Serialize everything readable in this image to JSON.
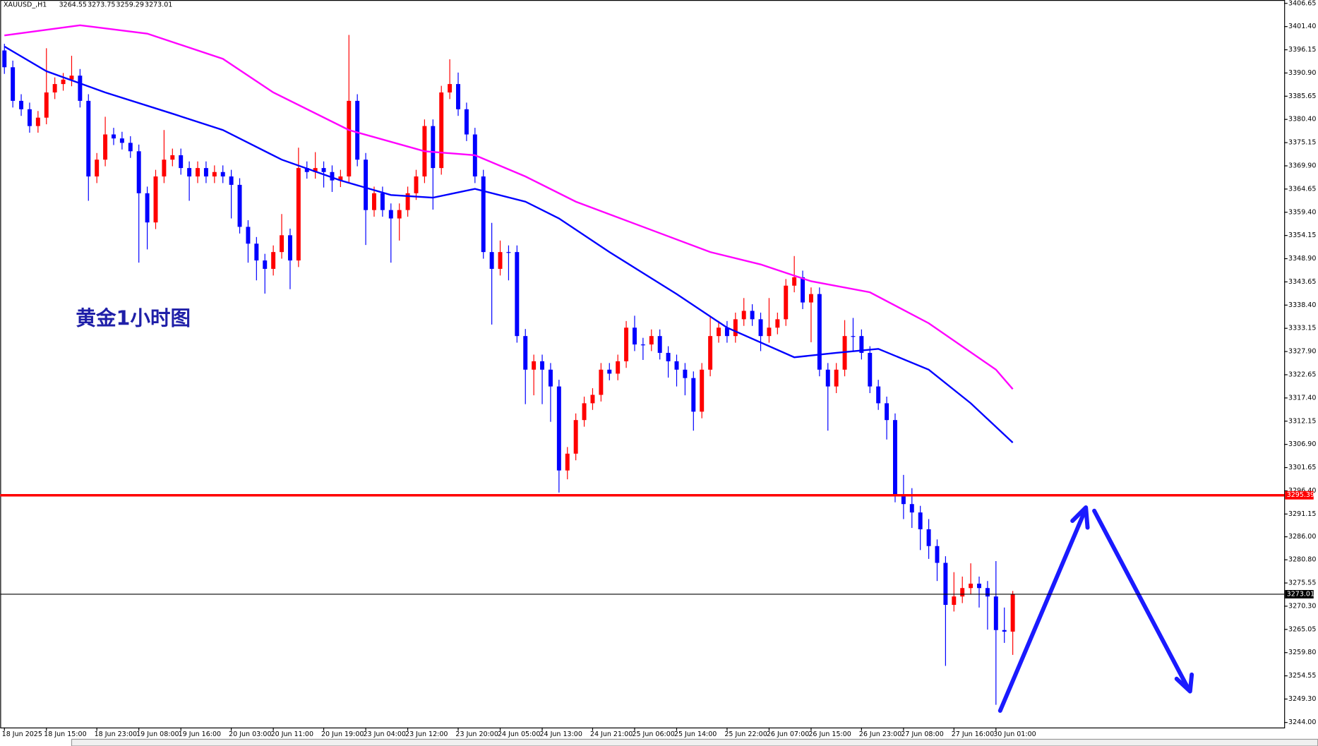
{
  "chart_data": {
    "type": "candlestick",
    "symbol": "XAUUSD_,H1",
    "annotation": "黄金1小时图",
    "up_color": "#ff0000",
    "down_color": "#0000ff",
    "grid": false,
    "ylim": [
      3242.86,
      3407.41
    ],
    "yticks": [
      {
        "value": 3406.65,
        "label": "3406.65"
      },
      {
        "value": 3401.4,
        "label": "3401.40"
      },
      {
        "value": 3396.15,
        "label": "3396.15"
      },
      {
        "value": 3390.9,
        "label": "3390.90"
      },
      {
        "value": 3385.65,
        "label": "3385.65"
      },
      {
        "value": 3380.4,
        "label": "3380.40"
      },
      {
        "value": 3375.15,
        "label": "3375.15"
      },
      {
        "value": 3369.9,
        "label": "3369.90"
      },
      {
        "value": 3364.65,
        "label": "3364.65"
      },
      {
        "value": 3359.4,
        "label": "3359.40"
      },
      {
        "value": 3354.15,
        "label": "3354.15"
      },
      {
        "value": 3348.9,
        "label": "3348.90"
      },
      {
        "value": 3343.65,
        "label": "3343.65"
      },
      {
        "value": 3338.4,
        "label": "3338.40"
      },
      {
        "value": 3333.15,
        "label": "3333.15"
      },
      {
        "value": 3327.9,
        "label": "3327.90"
      },
      {
        "value": 3322.65,
        "label": "3322.65"
      },
      {
        "value": 3317.4,
        "label": "3317.40"
      },
      {
        "value": 3312.15,
        "label": "3312.15"
      },
      {
        "value": 3306.9,
        "label": "3306.90"
      },
      {
        "value": 3301.65,
        "label": "3301.65"
      },
      {
        "value": 3296.4,
        "label": "3296.40"
      },
      {
        "value": 3291.15,
        "label": "3291.15"
      },
      {
        "value": 3286.0,
        "label": "3286.00"
      },
      {
        "value": 3280.8,
        "label": "3280.80"
      },
      {
        "value": 3275.55,
        "label": "3275.55"
      },
      {
        "value": 3270.3,
        "label": "3270.30"
      },
      {
        "value": 3265.05,
        "label": "3265.05"
      },
      {
        "value": 3259.8,
        "label": "3259.80"
      },
      {
        "value": 3254.55,
        "label": "3254.55"
      },
      {
        "value": 3249.3,
        "label": "3249.30"
      },
      {
        "value": 3244.0,
        "label": "3244.00"
      }
    ],
    "levels": [
      {
        "value": 3295.39,
        "color": "#ff0000"
      },
      {
        "value": 3273.01,
        "color": "#000000"
      }
    ],
    "categories": [
      "18 Jun 2025",
      null,
      null,
      null,
      null,
      "18 Jun 15:00",
      null,
      null,
      null,
      null,
      null,
      "18 Jun 23:00",
      null,
      null,
      null,
      null,
      "19 Jun 08:00",
      null,
      null,
      null,
      null,
      "19 Jun 16:00",
      null,
      null,
      null,
      null,
      null,
      "20 Jun 03:00",
      null,
      null,
      null,
      null,
      "20 Jun 11:00",
      null,
      null,
      null,
      null,
      null,
      "20 Jun 19:00",
      null,
      null,
      null,
      null,
      "23 Jun 04:00",
      null,
      null,
      null,
      null,
      "23 Jun 12:00",
      null,
      null,
      null,
      null,
      null,
      "23 Jun 20:00",
      null,
      null,
      null,
      null,
      "24 Jun 05:00",
      null,
      null,
      null,
      null,
      "24 Jun 13:00",
      null,
      null,
      null,
      null,
      null,
      "24 Jun 21:00",
      null,
      null,
      null,
      null,
      "25 Jun 06:00",
      null,
      null,
      null,
      null,
      "25 Jun 14:00",
      null,
      null,
      null,
      null,
      null,
      "25 Jun 22:00",
      null,
      null,
      null,
      null,
      "26 Jun 07:00",
      null,
      null,
      null,
      null,
      "26 Jun 15:00",
      null,
      null,
      null,
      null,
      null,
      "26 Jun 23:00",
      null,
      null,
      null,
      null,
      "27 Jun 08:00",
      null,
      null,
      null,
      null,
      null,
      "27 Jun 16:00",
      null,
      null,
      null,
      null,
      "30 Jun 01:00",
      null,
      null
    ],
    "open": [
      3396.0,
      3392.2,
      3384.6,
      3382.7,
      3378.9,
      3380.8,
      3386.5,
      3388.4,
      3389.4,
      3390.3,
      3384.6,
      3367.5,
      3371.3,
      3377.0,
      3376.1,
      3375.1,
      3373.2,
      3363.7,
      3357.1,
      3367.5,
      3371.3,
      3372.3,
      3369.4,
      3367.5,
      3369.4,
      3367.5,
      3368.5,
      3367.5,
      3365.6,
      3356.1,
      3352.3,
      3348.5,
      3346.6,
      3350.4,
      3354.2,
      3348.5,
      3369.4,
      3368.5,
      3369.4,
      3368.5,
      3366.6,
      3367.5,
      3384.6,
      3371.3,
      3359.9,
      3363.7,
      3359.9,
      3358.0,
      3359.9,
      3363.7,
      3367.5,
      3378.9,
      3369.4,
      3386.5,
      3388.4,
      3382.7,
      3377.0,
      3367.5,
      3350.4,
      3346.6,
      3350.4,
      3350.4,
      3331.4,
      3323.8,
      3325.7,
      3323.8,
      3320.0,
      3301.0,
      3304.8,
      3312.4,
      3316.2,
      3318.1,
      3323.8,
      3322.9,
      3325.7,
      3333.3,
      3329.5,
      3329.5,
      3331.4,
      3327.6,
      3325.7,
      3323.8,
      3321.9,
      3314.3,
      3323.8,
      3331.4,
      3333.3,
      3331.4,
      3335.2,
      3337.1,
      3335.2,
      3331.4,
      3333.3,
      3335.2,
      3342.8,
      3344.7,
      3339.0,
      3340.9,
      3323.8,
      3320.0,
      3323.8,
      3331.4,
      3331.4,
      3327.6,
      3320.0,
      3316.2,
      3312.4,
      3295.3,
      3293.4,
      3291.5,
      3287.7,
      3283.9,
      3280.1,
      3270.6,
      3272.5,
      3274.4,
      3275.4,
      3274.4,
      3272.5,
      3264.9,
      3264.55
    ],
    "high": [
      3397.5,
      3393.7,
      3386.1,
      3384.2,
      3382.3,
      3396.5,
      3389.9,
      3390.9,
      3394.8,
      3391.8,
      3386.1,
      3372.8,
      3381.0,
      3378.5,
      3377.6,
      3376.6,
      3374.7,
      3365.2,
      3369.0,
      3378.0,
      3373.8,
      3373.8,
      3370.9,
      3370.9,
      3370.9,
      3370.0,
      3370.0,
      3369.0,
      3367.1,
      3357.6,
      3353.8,
      3350.0,
      3351.9,
      3359.0,
      3355.7,
      3374.0,
      3370.9,
      3373.0,
      3370.9,
      3370.0,
      3369.0,
      3399.5,
      3386.1,
      3372.8,
      3365.2,
      3365.2,
      3361.4,
      3361.4,
      3365.2,
      3369.0,
      3380.4,
      3380.4,
      3388.0,
      3394.0,
      3391.0,
      3384.2,
      3378.5,
      3369.0,
      3357.0,
      3353.0,
      3351.9,
      3351.9,
      3333.0,
      3327.2,
      3327.2,
      3325.3,
      3321.5,
      3306.3,
      3313.9,
      3317.7,
      3319.6,
      3325.3,
      3325.3,
      3327.2,
      3334.8,
      3336.0,
      3331.0,
      3332.9,
      3332.9,
      3329.1,
      3327.2,
      3325.3,
      3323.4,
      3325.3,
      3336.0,
      3334.8,
      3334.8,
      3336.7,
      3340.0,
      3338.6,
      3336.7,
      3340.0,
      3336.7,
      3344.3,
      3349.5,
      3346.2,
      3342.4,
      3342.4,
      3325.3,
      3325.3,
      3335.0,
      3335.5,
      3332.9,
      3329.1,
      3321.5,
      3317.7,
      3313.9,
      3300.0,
      3297.0,
      3293.0,
      3290.0,
      3285.4,
      3281.6,
      3278.0,
      3277.0,
      3280.0,
      3277.0,
      3276.0,
      3280.5,
      3270.0,
      3273.75
    ],
    "low": [
      3390.7,
      3383.1,
      3381.2,
      3377.4,
      3377.4,
      3379.3,
      3385.0,
      3386.9,
      3387.9,
      3383.1,
      3362.0,
      3366.0,
      3369.8,
      3374.6,
      3373.6,
      3371.7,
      3348.0,
      3351.0,
      3355.6,
      3366.0,
      3369.8,
      3367.9,
      3362.0,
      3366.0,
      3366.0,
      3366.0,
      3366.0,
      3358.0,
      3354.6,
      3348.0,
      3344.0,
      3341.0,
      3345.1,
      3348.9,
      3342.0,
      3347.0,
      3367.0,
      3367.0,
      3365.0,
      3364.0,
      3365.1,
      3366.0,
      3369.8,
      3352.0,
      3358.4,
      3358.4,
      3348.0,
      3353.0,
      3358.4,
      3362.2,
      3366.0,
      3360.0,
      3367.9,
      3385.0,
      3381.2,
      3375.5,
      3366.0,
      3348.9,
      3334.0,
      3345.1,
      3344.0,
      3329.9,
      3316.0,
      3318.0,
      3316.0,
      3312.0,
      3296.0,
      3299.0,
      3303.3,
      3310.9,
      3314.7,
      3316.6,
      3321.4,
      3321.4,
      3324.2,
      3328.0,
      3326.0,
      3328.0,
      3326.1,
      3322.0,
      3320.0,
      3318.0,
      3310.0,
      3312.8,
      3322.3,
      3329.9,
      3329.9,
      3329.9,
      3333.7,
      3333.7,
      3328.0,
      3329.9,
      3331.8,
      3333.7,
      3341.3,
      3337.5,
      3330.0,
      3322.3,
      3310.0,
      3318.5,
      3322.3,
      3328.0,
      3326.1,
      3318.5,
      3314.7,
      3308.0,
      3293.8,
      3290.0,
      3288.0,
      3283.0,
      3281.0,
      3276.0,
      3256.8,
      3269.1,
      3271.0,
      3272.9,
      3270.0,
      3265.0,
      3248.0,
      3262.0,
      3259.29
    ],
    "close": [
      3392.2,
      3384.6,
      3382.7,
      3378.9,
      3380.8,
      3386.5,
      3388.4,
      3389.4,
      3390.3,
      3384.6,
      3367.5,
      3371.3,
      3377.0,
      3376.1,
      3375.1,
      3373.2,
      3363.7,
      3357.1,
      3367.5,
      3371.3,
      3372.3,
      3369.4,
      3367.5,
      3369.4,
      3367.5,
      3368.5,
      3367.5,
      3365.6,
      3356.1,
      3352.3,
      3348.5,
      3346.6,
      3350.4,
      3354.2,
      3348.5,
      3369.4,
      3368.5,
      3369.4,
      3368.5,
      3366.6,
      3367.5,
      3384.6,
      3371.3,
      3359.9,
      3363.7,
      3359.9,
      3358.0,
      3359.9,
      3363.7,
      3367.5,
      3378.9,
      3369.4,
      3386.5,
      3388.4,
      3382.7,
      3377.0,
      3367.5,
      3350.4,
      3346.6,
      3350.4,
      3350.4,
      3331.4,
      3323.8,
      3325.7,
      3323.8,
      3320.0,
      3301.0,
      3304.8,
      3312.4,
      3316.2,
      3318.1,
      3323.8,
      3322.9,
      3325.7,
      3333.3,
      3329.5,
      3329.5,
      3331.4,
      3327.6,
      3325.7,
      3323.8,
      3321.9,
      3314.3,
      3323.8,
      3331.4,
      3333.3,
      3331.4,
      3335.2,
      3337.1,
      3335.2,
      3331.4,
      3333.3,
      3335.2,
      3342.8,
      3344.7,
      3339.0,
      3340.9,
      3323.8,
      3320.0,
      3323.8,
      3331.4,
      3331.4,
      3327.6,
      3320.0,
      3316.2,
      3312.4,
      3295.3,
      3293.4,
      3291.5,
      3287.7,
      3283.9,
      3280.1,
      3270.6,
      3272.5,
      3274.4,
      3275.4,
      3274.4,
      3272.5,
      3264.9,
      3264.55,
      3273.01
    ],
    "ma_lines": [
      {
        "color": "#ff00ff",
        "x": [
          0,
          9,
          17,
          26,
          32,
          41,
          50,
          56,
          62,
          68,
          76,
          84,
          90,
          96,
          103,
          110,
          118,
          120
        ],
        "values": [
          3399.4,
          3401.7,
          3399.8,
          3394.1,
          3386.5,
          3378.0,
          3373.2,
          3372.3,
          3367.5,
          3361.8,
          3356.1,
          3350.4,
          3347.6,
          3343.8,
          3341.3,
          3334.3,
          3323.8,
          3319.4
        ]
      },
      {
        "color": "#0000ff",
        "x": [
          0,
          5,
          12,
          20,
          26,
          33,
          40,
          46,
          51,
          56,
          62,
          66,
          72,
          80,
          86,
          94,
          99,
          104,
          110,
          115,
          120
        ],
        "values": [
          3396.9,
          3391.3,
          3386.5,
          3381.7,
          3378.0,
          3371.3,
          3366.6,
          3363.3,
          3362.7,
          3364.7,
          3361.8,
          3358.0,
          3350.4,
          3340.9,
          3333.3,
          3326.6,
          3327.6,
          3328.5,
          3323.8,
          3316.2,
          3307.3
        ]
      }
    ]
  }
}
